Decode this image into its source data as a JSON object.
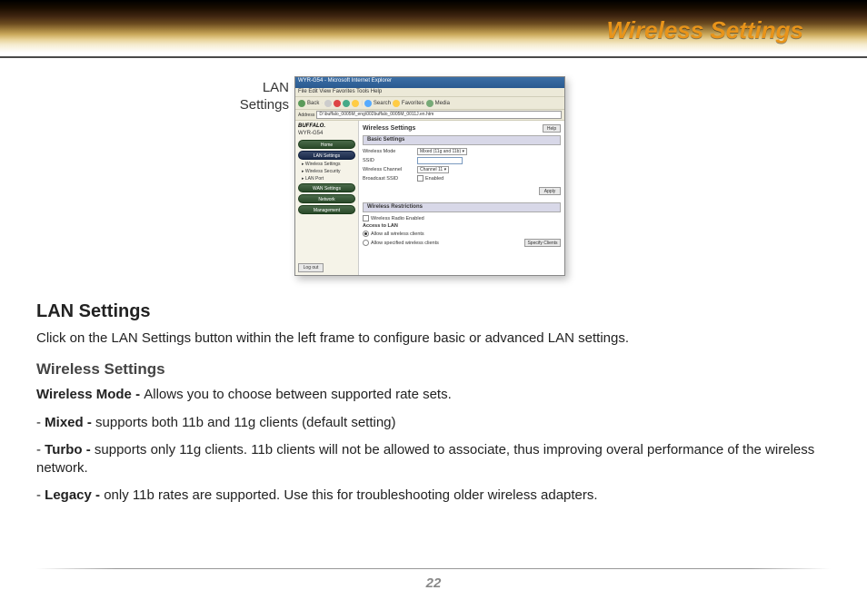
{
  "page": {
    "title": "Wireless Settings",
    "number": "22",
    "colors": {
      "title_color": "#e8941a",
      "rule_color": "#4a4a4a",
      "pagenum_color": "#888888"
    }
  },
  "caption": {
    "line1": "LAN",
    "line2": "Settings"
  },
  "screenshot": {
    "window_title": "WYR-G54 - Microsoft Internet Explorer",
    "menu": "File  Edit  View  Favorites  Tools  Help",
    "toolbar": {
      "back": "Back",
      "search": "Search",
      "favorites": "Favorites",
      "media": "Media"
    },
    "address_label": "Address",
    "address": "D:\\buffalo_0005M_eng\\002buffalo_0005M_0011J.en.htm",
    "brand": "BUFFALO.",
    "model": "WYR-G54",
    "nav": {
      "home": "Home",
      "lan": "LAN Settings",
      "wan": "WAN Settings",
      "network": "Network",
      "management": "Management",
      "logout": "Log out"
    },
    "sub": {
      "wifi": "Wireless Settings",
      "sec": "Wireless Security",
      "port": "LAN Port"
    },
    "main": {
      "title": "Wireless Settings",
      "help": "Help",
      "basic_bar": "Basic Settings",
      "mode_label": "Wireless Mode",
      "mode_value": "Mixed (11g and 11b)",
      "ssid_label": "SSID",
      "channel_label": "Wireless Channel",
      "channel_value": "Channel 11",
      "bcast_label": "Broadcast SSID",
      "bcast_value": "Enabled",
      "apply": "Apply",
      "restrict_bar": "Wireless Restrictions",
      "radio_enabled": "Wireless Radio Enabled",
      "access_label": "Access to LAN",
      "opt_all": "Allow all wireless clients",
      "opt_spec": "Allow specified wireless clients",
      "specify": "Specify Clients"
    }
  },
  "body": {
    "h1": "LAN Settings",
    "p1": "Click on the LAN Settings button within the left frame to configure basic or advanced LAN settings.",
    "h2": "Wireless Settings",
    "mode_label": "Wireless Mode - ",
    "mode_desc": "Allows you to choose between supported rate sets.",
    "mixed_label": "Mixed - ",
    "mixed_desc": "supports both 11b and 11g clients (default setting)",
    "turbo_label": "Turbo - ",
    "turbo_desc": "supports only 11g clients. 11b clients will not be allowed to associate, thus improving overal performance of the wireless network.",
    "legacy_label": "Legacy - ",
    "legacy_desc": "only 11b rates are supported. Use this for troubleshooting older wireless adapters."
  }
}
